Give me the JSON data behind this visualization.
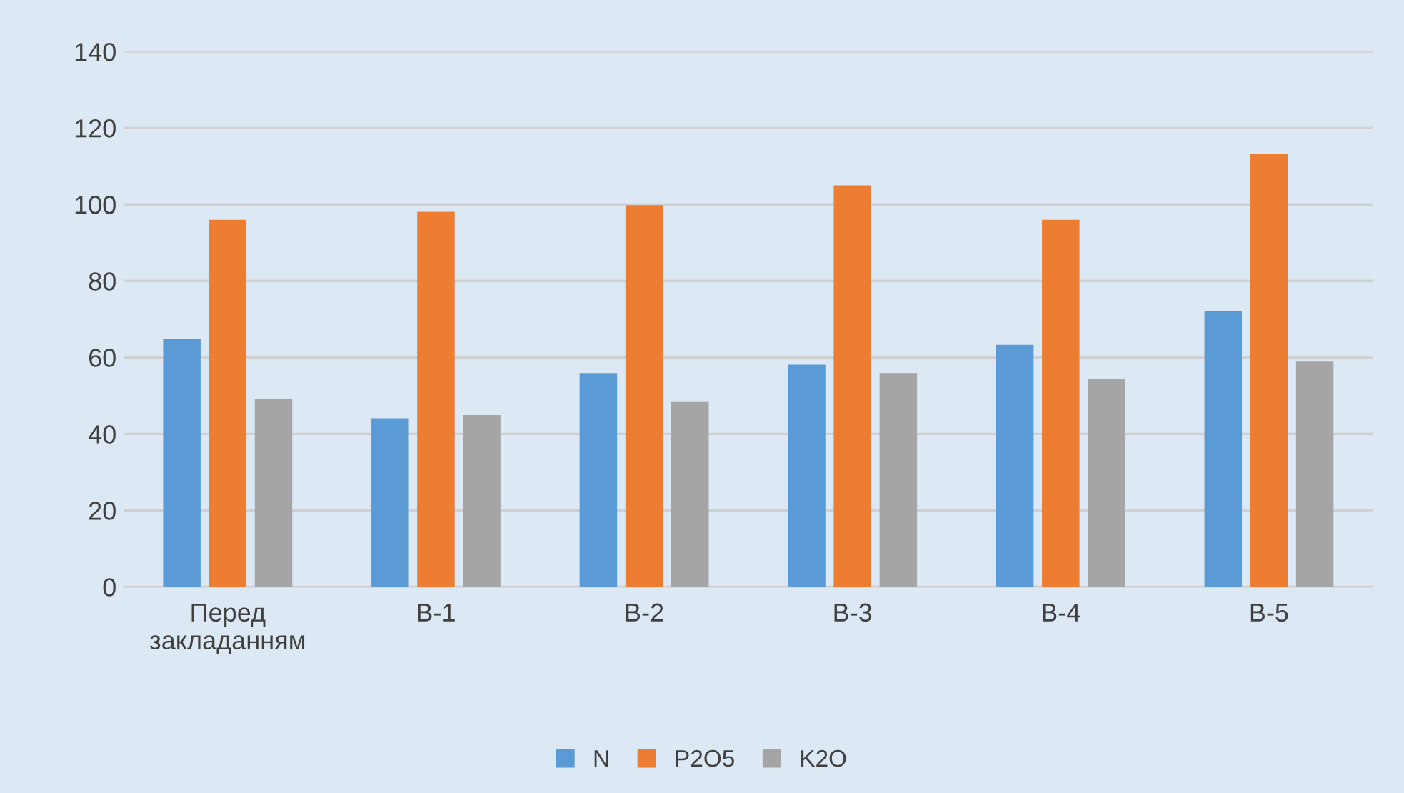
{
  "chart_data": {
    "type": "bar",
    "categories": [
      "Перед\nзакладанням",
      "В-1",
      "В-2",
      "В-3",
      "В-4",
      "В-5"
    ],
    "series": [
      {
        "name": "N",
        "color": "#5b9bd5",
        "values": [
          64.8,
          44.1,
          55.9,
          58.1,
          63.3,
          72.2
        ]
      },
      {
        "name": "P2O5",
        "color": "#ed7d31",
        "values": [
          96.0,
          98.1,
          99.8,
          105.0,
          96.0,
          113.1
        ]
      },
      {
        "name": "K2O",
        "color": "#a5a5a5",
        "values": [
          49.2,
          44.9,
          48.5,
          55.9,
          54.4,
          58.9
        ]
      }
    ],
    "ylim": [
      0,
      140
    ],
    "yticks": [
      0,
      20,
      40,
      60,
      80,
      100,
      120,
      140
    ],
    "grid": "y",
    "legend": "bottom"
  }
}
